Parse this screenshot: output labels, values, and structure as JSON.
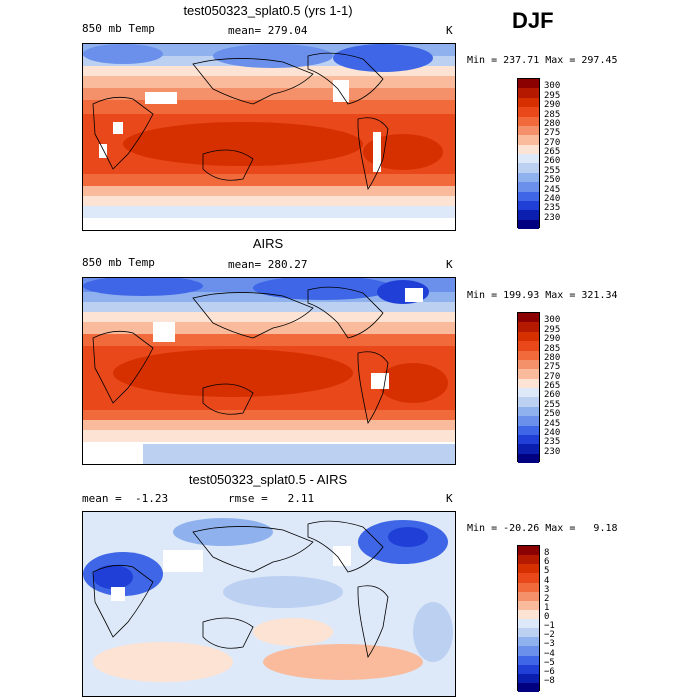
{
  "season": "DJF",
  "panels": [
    {
      "title": "test050323_splat0.5 (yrs 1-1)",
      "left_text": "850 mb Temp",
      "center_text": "mean= 279.04",
      "units": "K",
      "minmax": "Min = 237.71 Max = 297.45",
      "colorbar": {
        "labels": [
          "300",
          "295",
          "290",
          "285",
          "280",
          "275",
          "270",
          "265",
          "260",
          "255",
          "250",
          "245",
          "240",
          "235",
          "230"
        ],
        "colors": [
          "#8b0000",
          "#b51a00",
          "#d73000",
          "#e8481a",
          "#f06a3c",
          "#f5916a",
          "#f9bb9c",
          "#fde3d3",
          "#dde8f8",
          "#bcd0f2",
          "#8fb2ee",
          "#6a90ec",
          "#3e66e6",
          "#1f3fd6",
          "#0a1fb0",
          "#000080"
        ]
      }
    },
    {
      "title": "AIRS",
      "left_text": "850 mb Temp",
      "center_text": "mean= 280.27",
      "units": "K",
      "minmax": "Min = 199.93 Max = 321.34",
      "colorbar": {
        "labels": [
          "300",
          "295",
          "290",
          "285",
          "280",
          "275",
          "270",
          "265",
          "260",
          "255",
          "250",
          "245",
          "240",
          "235",
          "230"
        ],
        "colors": [
          "#8b0000",
          "#b51a00",
          "#d73000",
          "#e8481a",
          "#f06a3c",
          "#f5916a",
          "#f9bb9c",
          "#fde3d3",
          "#dde8f8",
          "#bcd0f2",
          "#8fb2ee",
          "#6a90ec",
          "#3e66e6",
          "#1f3fd6",
          "#0a1fb0",
          "#000080"
        ]
      }
    },
    {
      "title": "test050323_splat0.5 - AIRS",
      "left_text": "mean =  -1.23",
      "center_text": "rmse =   2.11",
      "units": "K",
      "minmax": "Min = -20.26 Max =   9.18",
      "colorbar": {
        "labels": [
          "8",
          "6",
          "5",
          "4",
          "3",
          "2",
          "1",
          "0",
          "−1",
          "−2",
          "−3",
          "−4",
          "−5",
          "−6",
          "−8"
        ],
        "colors": [
          "#8b0000",
          "#b51a00",
          "#d73000",
          "#e8481a",
          "#f06a3c",
          "#f5916a",
          "#f9bb9c",
          "#fde3d3",
          "#dde8f8",
          "#bcd0f2",
          "#8fb2ee",
          "#6a90ec",
          "#3e66e6",
          "#1f3fd6",
          "#0a1fb0",
          "#000080"
        ]
      }
    }
  ]
}
